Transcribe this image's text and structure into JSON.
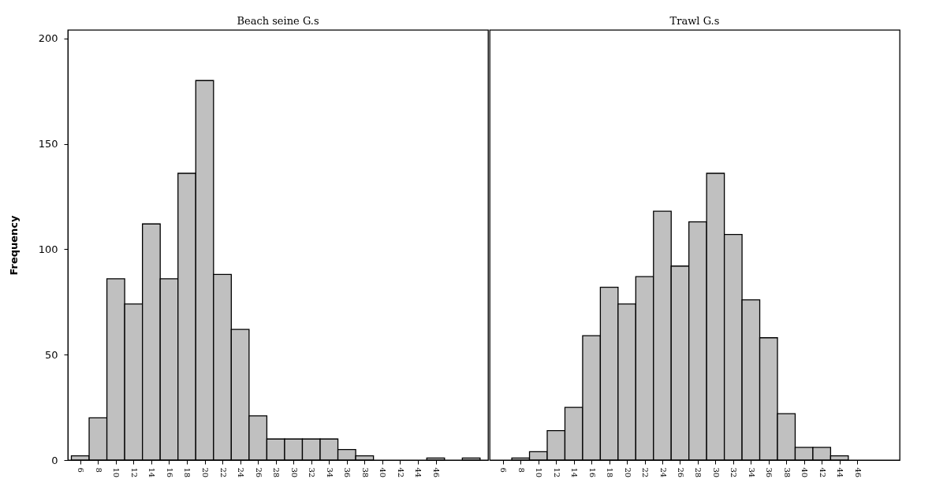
{
  "chart_data": [
    {
      "type": "histogram",
      "title": "Beach seine G.s",
      "ylabel": "Frequency",
      "color": "#c0c0c0",
      "bins": [
        5,
        7,
        9,
        11,
        13,
        15,
        17,
        19,
        21,
        23,
        25,
        27,
        29,
        31,
        33,
        35,
        37,
        39,
        41,
        43,
        45,
        47,
        49,
        51
      ],
      "values": [
        2,
        20,
        86,
        74,
        112,
        86,
        136,
        180,
        88,
        62,
        21,
        10,
        10,
        10,
        10,
        5,
        2,
        0,
        0,
        0,
        1,
        0,
        1
      ],
      "xlim": [
        4.6,
        51.9
      ],
      "xticks": [
        6,
        8,
        10,
        12,
        14,
        16,
        18,
        20,
        22,
        24,
        26,
        28,
        30,
        32,
        34,
        36,
        38,
        40,
        42,
        44,
        46
      ],
      "ylim": [
        0,
        204
      ],
      "yticks": [
        0,
        50,
        100,
        150,
        200
      ],
      "grid": false
    },
    {
      "type": "histogram",
      "title": "Trawl G.s",
      "color": "#c0c0c0",
      "bins": [
        5,
        7,
        9,
        11,
        13,
        15,
        17,
        19,
        21,
        23,
        25,
        27,
        29,
        31,
        33,
        35,
        37,
        39,
        41,
        43,
        45
      ],
      "values": [
        0,
        1,
        4,
        14,
        25,
        59,
        82,
        74,
        87,
        118,
        92,
        113,
        136,
        107,
        76,
        58,
        22,
        6,
        6,
        2
      ],
      "xlim": [
        4.5,
        50.8
      ],
      "xticks": [
        6,
        8,
        10,
        12,
        14,
        16,
        18,
        20,
        22,
        24,
        26,
        28,
        30,
        32,
        34,
        36,
        38,
        40,
        42,
        44,
        46
      ],
      "ylim": [
        0,
        204
      ],
      "tick_labels": "x",
      "grid": false
    }
  ]
}
